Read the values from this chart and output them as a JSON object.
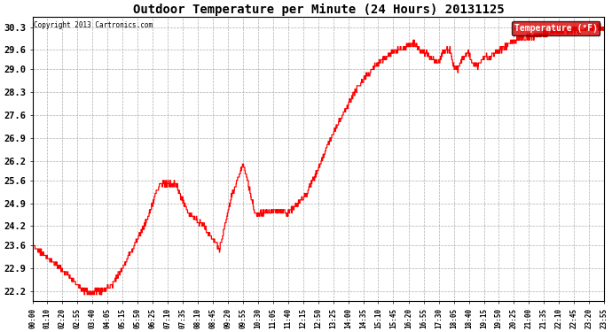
{
  "title": "Outdoor Temperature per Minute (24 Hours) 20131125",
  "copyright": "Copyright 2013 Cartronics.com",
  "legend_label": "Temperature (°F)",
  "ylabel_ticks": [
    22.2,
    22.9,
    23.6,
    24.2,
    24.9,
    25.6,
    26.2,
    26.9,
    27.6,
    28.3,
    29.0,
    29.6,
    30.3
  ],
  "ylim": [
    21.9,
    30.6
  ],
  "line_color": "#ff0000",
  "bg_color": "#ffffff",
  "grid_color": "#aaaaaa",
  "title_color": "#000000",
  "copyright_color": "#000000",
  "legend_bg": "#dd0000",
  "legend_text_color": "#ffffff",
  "x_tick_labels": [
    "00:00",
    "01:10",
    "02:20",
    "02:55",
    "03:40",
    "04:05",
    "05:15",
    "05:50",
    "06:25",
    "07:10",
    "07:35",
    "08:10",
    "08:45",
    "09:20",
    "09:55",
    "10:30",
    "11:05",
    "11:40",
    "12:15",
    "12:50",
    "13:25",
    "14:00",
    "14:35",
    "15:10",
    "15:45",
    "16:20",
    "16:55",
    "17:30",
    "18:05",
    "18:40",
    "19:15",
    "19:50",
    "20:25",
    "21:00",
    "21:35",
    "22:10",
    "22:45",
    "23:20",
    "23:55"
  ],
  "num_minutes": 1440,
  "figwidth": 6.9,
  "figheight": 3.75,
  "dpi": 100,
  "keypoints": [
    [
      0,
      23.6
    ],
    [
      70,
      22.9
    ],
    [
      130,
      22.2
    ],
    [
      170,
      22.2
    ],
    [
      200,
      22.4
    ],
    [
      230,
      23.0
    ],
    [
      280,
      24.2
    ],
    [
      320,
      25.5
    ],
    [
      360,
      25.5
    ],
    [
      390,
      24.6
    ],
    [
      430,
      24.2
    ],
    [
      470,
      23.5
    ],
    [
      500,
      25.1
    ],
    [
      530,
      26.1
    ],
    [
      560,
      24.6
    ],
    [
      590,
      24.6
    ],
    [
      610,
      24.7
    ],
    [
      640,
      24.6
    ],
    [
      660,
      24.8
    ],
    [
      690,
      25.2
    ],
    [
      720,
      26.0
    ],
    [
      750,
      26.9
    ],
    [
      780,
      27.6
    ],
    [
      810,
      28.3
    ],
    [
      840,
      28.8
    ],
    [
      870,
      29.2
    ],
    [
      900,
      29.5
    ],
    [
      920,
      29.6
    ],
    [
      940,
      29.7
    ],
    [
      960,
      29.8
    ],
    [
      975,
      29.6
    ],
    [
      990,
      29.5
    ],
    [
      1000,
      29.4
    ],
    [
      1010,
      29.3
    ],
    [
      1020,
      29.2
    ],
    [
      1035,
      29.6
    ],
    [
      1050,
      29.6
    ],
    [
      1060,
      29.1
    ],
    [
      1070,
      29.0
    ],
    [
      1080,
      29.3
    ],
    [
      1095,
      29.5
    ],
    [
      1110,
      29.2
    ],
    [
      1120,
      29.1
    ],
    [
      1130,
      29.3
    ],
    [
      1140,
      29.4
    ],
    [
      1150,
      29.3
    ],
    [
      1160,
      29.5
    ],
    [
      1180,
      29.6
    ],
    [
      1200,
      29.8
    ],
    [
      1220,
      29.9
    ],
    [
      1240,
      30.0
    ],
    [
      1260,
      30.0
    ],
    [
      1280,
      30.1
    ],
    [
      1300,
      30.1
    ],
    [
      1320,
      30.2
    ],
    [
      1350,
      30.2
    ],
    [
      1380,
      30.2
    ],
    [
      1410,
      30.3
    ],
    [
      1439,
      30.3
    ]
  ]
}
